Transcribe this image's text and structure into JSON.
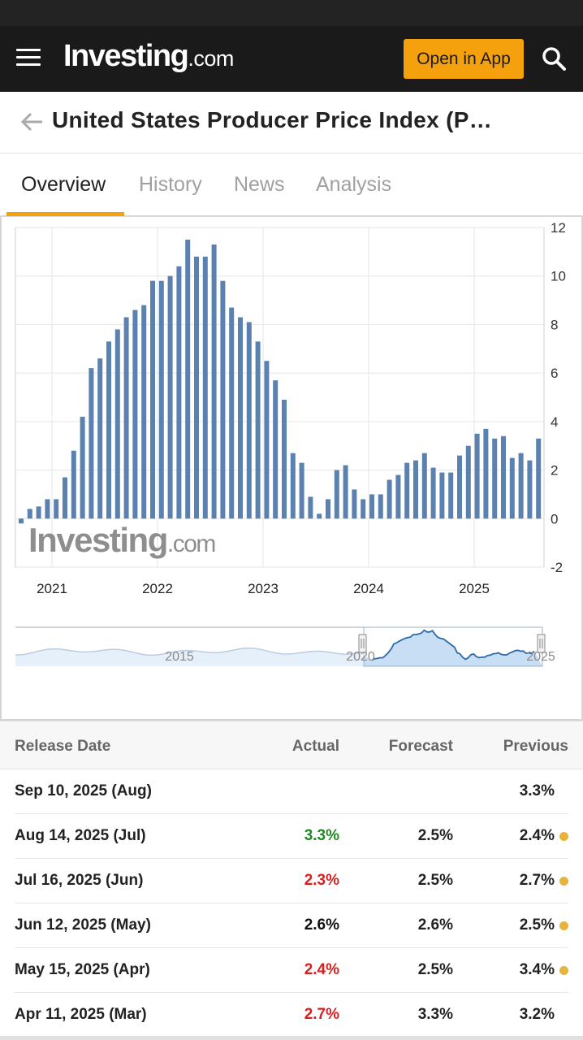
{
  "header": {
    "brand": "Investing",
    "brand_suffix": ".com",
    "open_app_label": "Open in App"
  },
  "page": {
    "title": "United States Producer Price Index (P…"
  },
  "tabs": [
    {
      "label": "Overview",
      "active": true
    },
    {
      "label": "History",
      "active": false
    },
    {
      "label": "News",
      "active": false
    },
    {
      "label": "Analysis",
      "active": false
    }
  ],
  "chart_data": {
    "type": "bar",
    "y_ticks": [
      "12",
      "10",
      "8",
      "6",
      "4",
      "2",
      "0",
      "-2"
    ],
    "ylim": [
      -2,
      12
    ],
    "x_ticks": [
      "2021",
      "2022",
      "2023",
      "2024",
      "2025"
    ],
    "watermark_brand": "Investing",
    "watermark_suffix": ".com",
    "navigator_labels": [
      "2015",
      "2020",
      "2025"
    ],
    "series": [
      {
        "values": [
          -0.2,
          0.4,
          0.5,
          0.8,
          0.8,
          1.7,
          2.8,
          4.2,
          6.2,
          6.6,
          7.3,
          7.8,
          8.3,
          8.6,
          8.8,
          9.8,
          9.8,
          10.0,
          10.4,
          11.5,
          10.8,
          10.8,
          11.3,
          9.8,
          8.7,
          8.3,
          8.1,
          7.3,
          6.5,
          5.7,
          4.9,
          2.7,
          2.3,
          0.9,
          0.2,
          0.8,
          2.0,
          2.2,
          1.2,
          0.8,
          1.0,
          1.0,
          1.6,
          1.8,
          2.3,
          2.4,
          2.7,
          2.1,
          1.9,
          1.9,
          2.6,
          3.0,
          3.5,
          3.7,
          3.3,
          3.4,
          2.5,
          2.7,
          2.4,
          3.3
        ],
        "color": "#5b81b0"
      }
    ]
  },
  "table": {
    "headers": {
      "date": "Release Date",
      "actual": "Actual",
      "forecast": "Forecast",
      "previous": "Previous"
    },
    "rows": [
      {
        "date": "Sep 10, 2025 (Aug)",
        "actual": "",
        "actual_color": "#222222",
        "forecast": "",
        "previous": "3.3%",
        "dot": false
      },
      {
        "date": "Aug 14, 2025 (Jul)",
        "actual": "3.3%",
        "actual_color": "#1e8a1e",
        "forecast": "2.5%",
        "previous": "2.4%",
        "dot": true
      },
      {
        "date": "Jul 16, 2025 (Jun)",
        "actual": "2.3%",
        "actual_color": "#d91e1e",
        "forecast": "2.5%",
        "previous": "2.7%",
        "dot": true
      },
      {
        "date": "Jun 12, 2025 (May)",
        "actual": "2.6%",
        "actual_color": "#111111",
        "forecast": "2.6%",
        "previous": "2.5%",
        "dot": true
      },
      {
        "date": "May 15, 2025 (Apr)",
        "actual": "2.4%",
        "actual_color": "#d91e1e",
        "forecast": "2.5%",
        "previous": "3.4%",
        "dot": true
      },
      {
        "date": "Apr 11, 2025 (Mar)",
        "actual": "2.7%",
        "actual_color": "#d91e1e",
        "forecast": "3.3%",
        "previous": "3.2%",
        "dot": false
      }
    ]
  },
  "colors": {
    "accent": "#f5a10e",
    "bar": "#5b81b0",
    "positive": "#1e8a1e",
    "negative": "#d91e1e",
    "revision_dot": "#e8b33d"
  }
}
